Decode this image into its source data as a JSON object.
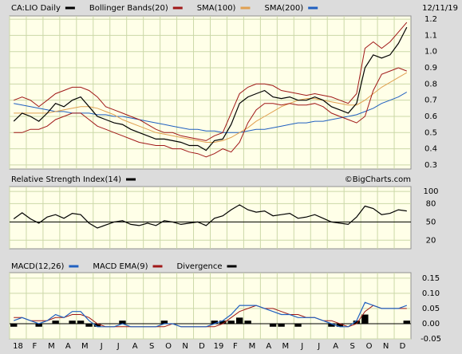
{
  "chart_data": [
    {
      "type": "line",
      "date": "12/11/19",
      "ylim": [
        0.275,
        1.22
      ],
      "yticks": [
        0.3,
        0.4,
        0.5,
        0.6,
        0.7,
        0.8,
        0.9,
        {
          "value": 1,
          "label": "1.0"
        },
        1.1,
        1.2
      ],
      "grid": true,
      "series": [
        {
          "name": "CA:LIO Daily",
          "color": "#000000",
          "values": [
            0.57,
            0.62,
            0.6,
            0.57,
            0.62,
            0.68,
            0.66,
            0.7,
            0.72,
            0.66,
            0.6,
            0.58,
            0.56,
            0.55,
            0.52,
            0.5,
            0.48,
            0.46,
            0.46,
            0.45,
            0.44,
            0.42,
            0.42,
            0.39,
            0.45,
            0.46,
            0.55,
            0.68,
            0.72,
            0.74,
            0.76,
            0.72,
            0.71,
            0.72,
            0.7,
            0.7,
            0.72,
            0.7,
            0.66,
            0.64,
            0.62,
            0.68,
            0.9,
            0.98,
            0.96,
            0.98,
            1.05,
            1.15
          ]
        },
        {
          "name": "Bollinger Bands(20)",
          "color": "#a01818",
          "upper": [
            0.7,
            0.72,
            0.7,
            0.66,
            0.7,
            0.74,
            0.76,
            0.78,
            0.78,
            0.76,
            0.72,
            0.66,
            0.64,
            0.62,
            0.6,
            0.58,
            0.55,
            0.52,
            0.5,
            0.5,
            0.48,
            0.47,
            0.46,
            0.45,
            0.48,
            0.5,
            0.62,
            0.74,
            0.78,
            0.8,
            0.8,
            0.79,
            0.76,
            0.75,
            0.74,
            0.73,
            0.74,
            0.73,
            0.72,
            0.7,
            0.68,
            0.74,
            1.02,
            1.06,
            1.02,
            1.06,
            1.12,
            1.18
          ],
          "lower": [
            0.5,
            0.5,
            0.52,
            0.52,
            0.54,
            0.58,
            0.6,
            0.62,
            0.62,
            0.58,
            0.54,
            0.52,
            0.5,
            0.48,
            0.46,
            0.44,
            0.43,
            0.42,
            0.42,
            0.4,
            0.4,
            0.38,
            0.37,
            0.35,
            0.37,
            0.4,
            0.38,
            0.44,
            0.56,
            0.64,
            0.68,
            0.68,
            0.67,
            0.68,
            0.67,
            0.67,
            0.68,
            0.66,
            0.62,
            0.6,
            0.58,
            0.56,
            0.6,
            0.76,
            0.86,
            0.88,
            0.9,
            0.88
          ]
        },
        {
          "name": "SMA(100)",
          "color": "#e0a050",
          "values": [
            0.62,
            0.62,
            0.62,
            0.62,
            0.62,
            0.63,
            0.64,
            0.65,
            0.66,
            0.66,
            0.65,
            0.63,
            0.61,
            0.58,
            0.56,
            0.54,
            0.52,
            0.5,
            0.49,
            0.48,
            0.47,
            0.46,
            0.45,
            0.44,
            0.44,
            0.45,
            0.47,
            0.5,
            0.53,
            0.57,
            0.6,
            0.63,
            0.66,
            0.68,
            0.7,
            0.71,
            0.71,
            0.7,
            0.69,
            0.68,
            0.67,
            0.67,
            0.7,
            0.74,
            0.78,
            0.81,
            0.84,
            0.87
          ]
        },
        {
          "name": "SMA(200)",
          "color": "#2060c0",
          "values": [
            0.68,
            0.67,
            0.66,
            0.65,
            0.64,
            0.63,
            0.63,
            0.62,
            0.62,
            0.62,
            0.61,
            0.61,
            0.6,
            0.6,
            0.59,
            0.58,
            0.57,
            0.56,
            0.55,
            0.54,
            0.53,
            0.52,
            0.52,
            0.51,
            0.51,
            0.5,
            0.5,
            0.5,
            0.51,
            0.52,
            0.52,
            0.53,
            0.54,
            0.55,
            0.56,
            0.56,
            0.57,
            0.57,
            0.58,
            0.59,
            0.6,
            0.61,
            0.63,
            0.65,
            0.68,
            0.7,
            0.72,
            0.75
          ]
        }
      ]
    },
    {
      "type": "line",
      "annotation": "©BigCharts.com",
      "ylim": [
        6,
        108
      ],
      "yticks": [
        20,
        50,
        80,
        100
      ],
      "reference_line": 50,
      "grid": true,
      "series": [
        {
          "name": "Relative Strength Index(14)",
          "color": "#000000",
          "values": [
            55,
            65,
            55,
            48,
            58,
            62,
            56,
            64,
            62,
            48,
            40,
            45,
            50,
            52,
            46,
            44,
            48,
            44,
            52,
            50,
            46,
            48,
            50,
            44,
            56,
            60,
            70,
            78,
            70,
            66,
            68,
            60,
            62,
            64,
            56,
            58,
            62,
            56,
            50,
            48,
            46,
            58,
            76,
            72,
            62,
            64,
            70,
            68
          ]
        }
      ]
    },
    {
      "type": "line",
      "ylim": [
        -0.05,
        0.168
      ],
      "yticks": [
        {
          "value": 0.15,
          "label": "0.15"
        },
        {
          "value": 0.1,
          "label": "0.10"
        },
        {
          "value": 0.05,
          "label": "0.05"
        },
        {
          "value": 0,
          "label": "0.00"
        },
        {
          "value": -0.05,
          "label": "-0.05"
        }
      ],
      "reference_line": 0,
      "grid": true,
      "categories": [
        "18",
        null,
        "F",
        null,
        "M",
        null,
        "A",
        null,
        "M",
        null,
        "J",
        null,
        "J",
        null,
        "A",
        null,
        "S",
        null,
        "O",
        null,
        "N",
        null,
        "D",
        null,
        "19",
        null,
        "F",
        null,
        "M",
        null,
        "A",
        null,
        "M",
        null,
        "J",
        null,
        "J",
        null,
        "A",
        null,
        "S",
        null,
        "O",
        null,
        "N",
        null,
        "D",
        null
      ],
      "series": [
        {
          "name": "MACD(12,26)",
          "color": "#2060c0",
          "values": [
            0.01,
            0.02,
            0.01,
            0.0,
            0.01,
            0.03,
            0.02,
            0.04,
            0.04,
            0.01,
            -0.01,
            -0.01,
            -0.01,
            0.0,
            -0.01,
            -0.01,
            -0.01,
            -0.01,
            0.0,
            0.0,
            -0.01,
            -0.01,
            -0.01,
            -0.01,
            0.0,
            0.01,
            0.03,
            0.06,
            0.06,
            0.06,
            0.05,
            0.04,
            0.03,
            0.03,
            0.02,
            0.02,
            0.02,
            0.01,
            0.0,
            -0.01,
            -0.01,
            0.01,
            0.07,
            0.06,
            0.05,
            0.05,
            0.05,
            0.06
          ]
        },
        {
          "name": "MACD EMA(9)",
          "color": "#a01818",
          "values": [
            0.02,
            0.02,
            0.01,
            0.01,
            0.01,
            0.02,
            0.02,
            0.03,
            0.03,
            0.02,
            0.0,
            -0.01,
            -0.01,
            -0.01,
            -0.01,
            -0.01,
            -0.01,
            -0.01,
            -0.01,
            0.0,
            -0.01,
            -0.01,
            -0.01,
            -0.01,
            -0.01,
            0.0,
            0.02,
            0.04,
            0.05,
            0.06,
            0.05,
            0.05,
            0.04,
            0.03,
            0.03,
            0.02,
            0.02,
            0.01,
            0.01,
            0.0,
            -0.01,
            0.0,
            0.04,
            0.06,
            0.05,
            0.05,
            0.05,
            0.05
          ]
        },
        {
          "name": "Divergence",
          "color": "#000000",
          "type": "bar",
          "values": [
            -0.01,
            0.0,
            0.0,
            -0.01,
            0.0,
            0.01,
            0.0,
            0.01,
            0.01,
            -0.01,
            -0.01,
            0.0,
            0.0,
            0.01,
            0.0,
            0.0,
            0.0,
            0.0,
            0.01,
            0.0,
            0.0,
            0.0,
            0.0,
            0.0,
            0.01,
            0.01,
            0.01,
            0.02,
            0.01,
            0.0,
            0.0,
            -0.01,
            -0.01,
            0.0,
            -0.01,
            0.0,
            0.0,
            0.0,
            -0.01,
            -0.01,
            0.0,
            0.01,
            0.03,
            0.0,
            0.0,
            0.0,
            0.0,
            0.01
          ]
        }
      ]
    }
  ]
}
